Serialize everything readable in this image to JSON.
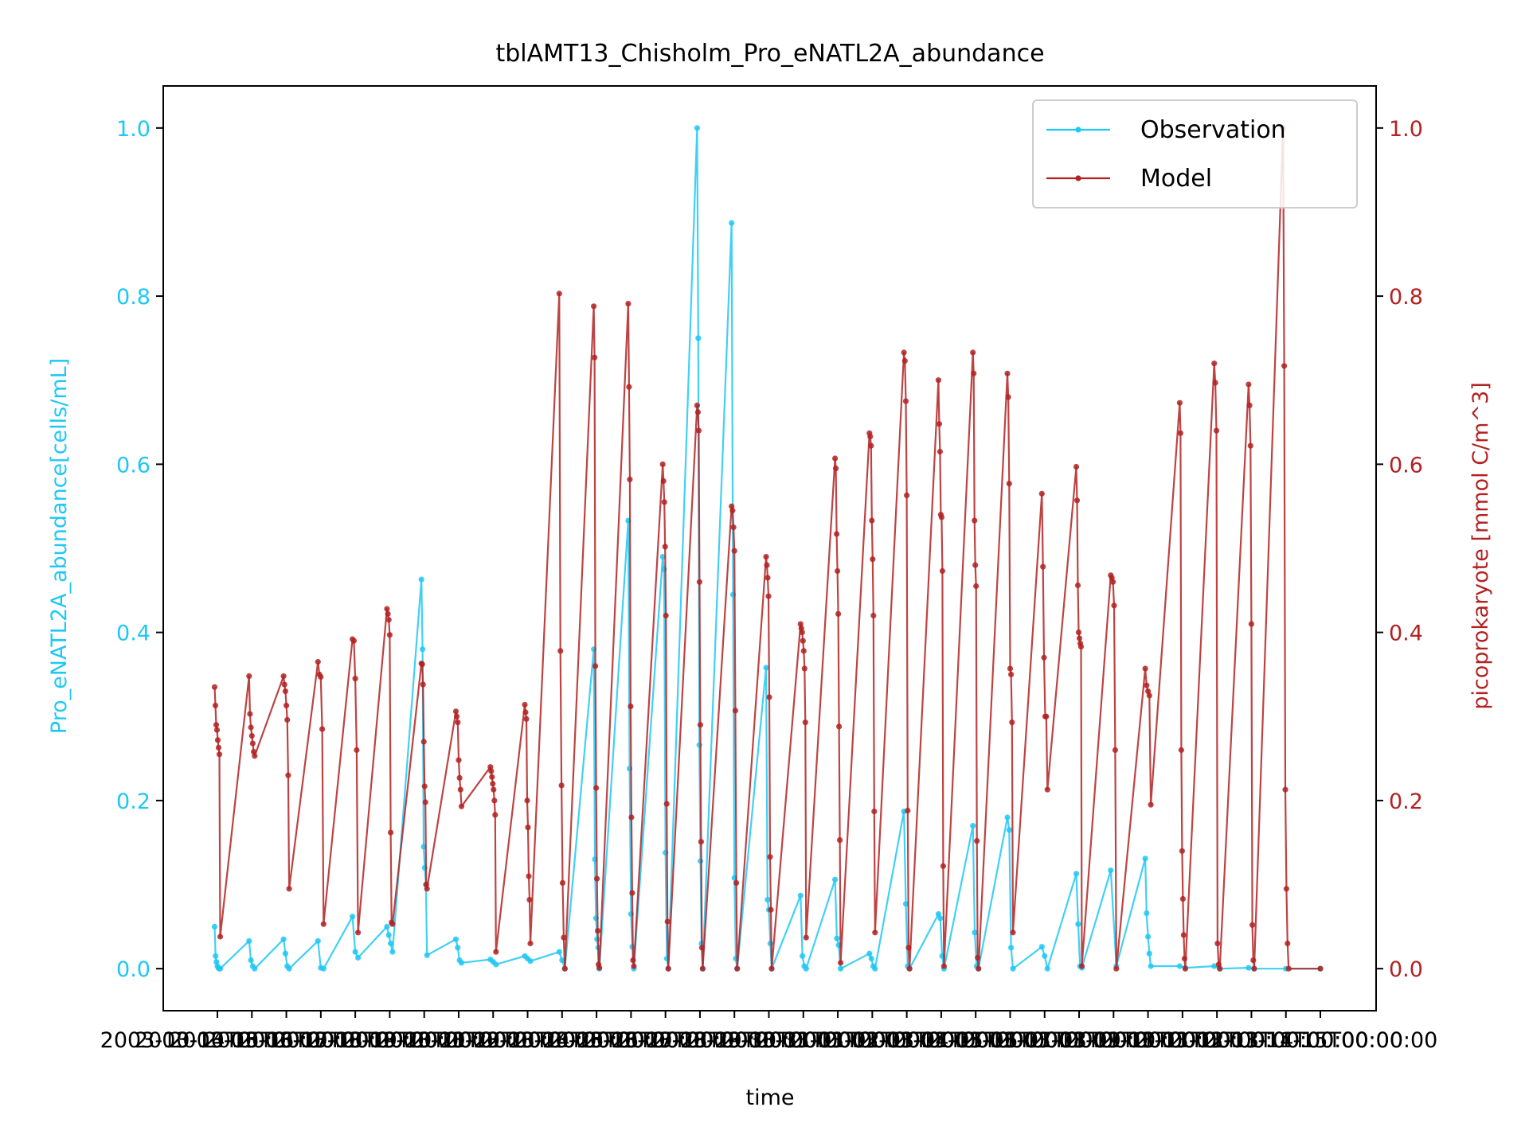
{
  "chart_data": {
    "type": "line",
    "title": "tblAMT13_Chisholm_Pro_eNATL2A_abundance",
    "xlabel": "time",
    "ylabel_left": "Pro_eNATL2A_abundance[cells/mL]",
    "ylabel_right": "picoprokaryote [mmol C/m^3]",
    "x_tick_labels": [
      "2003-10-14T00:00:00",
      "2003-10-15T00:00:00",
      "2003-10-16T00:00:00",
      "2003-10-17T00:00:00",
      "2003-10-18T00:00:00",
      "2003-10-19T00:00:00",
      "2003-10-20T00:00:00",
      "2003-10-21T00:00:00",
      "2003-10-22T00:00:00",
      "2003-10-23T00:00:00",
      "2003-10-24T00:00:00",
      "2003-10-25T00:00:00",
      "2003-10-26T00:00:00",
      "2003-10-27T00:00:00",
      "2003-10-28T00:00:00",
      "2003-10-29T00:00:00",
      "2003-10-30T00:00:00",
      "2003-10-31T00:00:00",
      "2003-11-01T00:00:00",
      "2003-11-02T00:00:00",
      "2003-11-03T00:00:00",
      "2003-11-04T00:00:00",
      "2003-11-05T00:00:00",
      "2003-11-06T00:00:00",
      "2003-11-07T00:00:00",
      "2003-11-08T00:00:00",
      "2003-11-09T00:00:00",
      "2003-11-10T00:00:00",
      "2003-11-11T00:00:00",
      "2003-11-12T00:00:00",
      "2003-11-13T00:00:00",
      "2003-11-14T00:00:00",
      "2003-11-15T00:00:00"
    ],
    "y_ticks": [
      "0.0",
      "0.2",
      "0.4",
      "0.6",
      "0.8",
      "1.0"
    ],
    "ylim_left": [
      -0.05,
      1.05
    ],
    "ylim_right": [
      -0.05,
      1.05
    ],
    "legend_position": "top-right",
    "colors": {
      "observation": "#1ec8f5",
      "model": "#b22222",
      "axis": "#000000"
    },
    "series": [
      {
        "name": "Observation",
        "axis": "left",
        "groups": [
          [
            0.05,
            0.015,
            0.008,
            0.003,
            0.001,
            0.0,
            0.0
          ],
          [
            0.033,
            0.01,
            0.003,
            0.0
          ],
          [
            0.035,
            0.018,
            0.003,
            0.0
          ],
          [
            0.033,
            0.001,
            0.0
          ],
          [
            0.062,
            0.02,
            0.013
          ],
          [
            0.05,
            0.04,
            0.03,
            0.02
          ],
          [
            0.463,
            0.38,
            0.145,
            0.12,
            0.1,
            0.016
          ],
          [
            0.035,
            0.025,
            0.01,
            0.007
          ],
          [
            0.011,
            0.008,
            0.005
          ],
          [
            0.015,
            0.012,
            0.009
          ],
          [
            0.02,
            0.01,
            0.0
          ],
          [
            0.38,
            0.13,
            0.06,
            0.035,
            0.025,
            0.0
          ],
          [
            0.533,
            0.238,
            0.065,
            0.026,
            0.0
          ],
          [
            0.49,
            0.475,
            0.138,
            0.012,
            0.0
          ],
          [
            1.0,
            0.75,
            0.266,
            0.128,
            0.03,
            0.0
          ],
          [
            0.887,
            0.445,
            0.108,
            0.012,
            0.0
          ],
          [
            0.358,
            0.082,
            0.07,
            0.03,
            0.0
          ],
          [
            0.087,
            0.015,
            0.003,
            0.0
          ],
          [
            0.106,
            0.036,
            0.028,
            0.0
          ],
          [
            0.018,
            0.012,
            0.003,
            0.0
          ],
          [
            0.187,
            0.077,
            0.003,
            0.0
          ],
          [
            0.065,
            0.06,
            0.015,
            0.0
          ],
          [
            0.17,
            0.043,
            0.003,
            0.0
          ],
          [
            0.18,
            0.165,
            0.025,
            0.0
          ],
          [
            0.026,
            0.015,
            0.0
          ],
          [
            0.113,
            0.053,
            0.003,
            0.001
          ],
          [
            0.117,
            0.003
          ],
          [
            0.131,
            0.066,
            0.038,
            0.018,
            0.003
          ],
          [
            0.003,
            0.001
          ],
          [
            0.003,
            0.0
          ],
          [
            0.001,
            0.0
          ],
          [
            0.0
          ],
          [
            0.0
          ]
        ]
      },
      {
        "name": "Model",
        "axis": "right",
        "groups": [
          [
            0.335,
            0.313,
            0.29,
            0.284,
            0.272,
            0.263,
            0.255,
            0.038
          ],
          [
            0.348,
            0.303,
            0.287,
            0.277,
            0.268,
            0.258,
            0.253
          ],
          [
            0.348,
            0.338,
            0.33,
            0.313,
            0.296,
            0.23,
            0.095
          ],
          [
            0.365,
            0.35,
            0.347,
            0.285,
            0.053
          ],
          [
            0.392,
            0.39,
            0.345,
            0.26,
            0.043
          ],
          [
            0.428,
            0.422,
            0.415,
            0.397,
            0.162,
            0.055,
            0.053
          ],
          [
            0.363,
            0.362,
            0.338,
            0.27,
            0.217,
            0.198,
            0.1,
            0.095
          ],
          [
            0.306,
            0.3,
            0.293,
            0.248,
            0.227,
            0.213,
            0.193
          ],
          [
            0.24,
            0.235,
            0.228,
            0.22,
            0.213,
            0.2,
            0.183,
            0.02
          ],
          [
            0.314,
            0.305,
            0.297,
            0.2,
            0.168,
            0.11,
            0.082,
            0.03
          ],
          [
            0.803,
            0.378,
            0.218,
            0.102,
            0.037,
            0.0
          ],
          [
            0.788,
            0.727,
            0.36,
            0.215,
            0.107,
            0.045,
            0.005,
            0.001
          ],
          [
            0.791,
            0.692,
            0.582,
            0.312,
            0.18,
            0.09,
            0.01,
            0.003
          ],
          [
            0.6,
            0.58,
            0.555,
            0.502,
            0.42,
            0.196,
            0.056,
            0.0
          ],
          [
            0.67,
            0.662,
            0.64,
            0.46,
            0.29,
            0.151,
            0.025,
            0.0
          ],
          [
            0.55,
            0.545,
            0.525,
            0.497,
            0.307,
            0.102,
            0.0
          ],
          [
            0.49,
            0.48,
            0.465,
            0.443,
            0.323,
            0.133,
            0.07,
            0.0
          ],
          [
            0.41,
            0.405,
            0.4,
            0.39,
            0.378,
            0.357,
            0.293,
            0.037
          ],
          [
            0.607,
            0.595,
            0.517,
            0.473,
            0.422,
            0.288,
            0.153,
            0.007
          ],
          [
            0.637,
            0.633,
            0.622,
            0.533,
            0.487,
            0.42,
            0.187,
            0.043
          ],
          [
            0.733,
            0.723,
            0.675,
            0.563,
            0.188,
            0.025,
            0.0
          ],
          [
            0.7,
            0.648,
            0.615,
            0.54,
            0.537,
            0.473,
            0.122,
            0.003
          ],
          [
            0.733,
            0.708,
            0.533,
            0.48,
            0.455,
            0.152,
            0.013,
            0.0
          ],
          [
            0.708,
            0.68,
            0.577,
            0.357,
            0.35,
            0.293,
            0.043
          ],
          [
            0.565,
            0.478,
            0.37,
            0.3,
            0.3,
            0.213
          ],
          [
            0.597,
            0.557,
            0.456,
            0.4,
            0.393,
            0.387,
            0.383,
            0.003
          ],
          [
            0.468,
            0.465,
            0.46,
            0.432,
            0.26,
            0.0
          ],
          [
            0.357,
            0.337,
            0.33,
            0.325,
            0.195
          ],
          [
            0.673,
            0.637,
            0.26,
            0.14,
            0.083,
            0.04,
            0.012,
            0.0
          ],
          [
            0.72,
            0.697,
            0.64,
            0.03,
            0.005,
            0.0
          ],
          [
            0.695,
            0.67,
            0.622,
            0.41,
            0.052,
            0.01,
            0.0
          ],
          [
            1.0,
            0.717,
            0.213,
            0.095,
            0.03,
            0.0
          ],
          [
            0.0
          ]
        ]
      }
    ]
  }
}
